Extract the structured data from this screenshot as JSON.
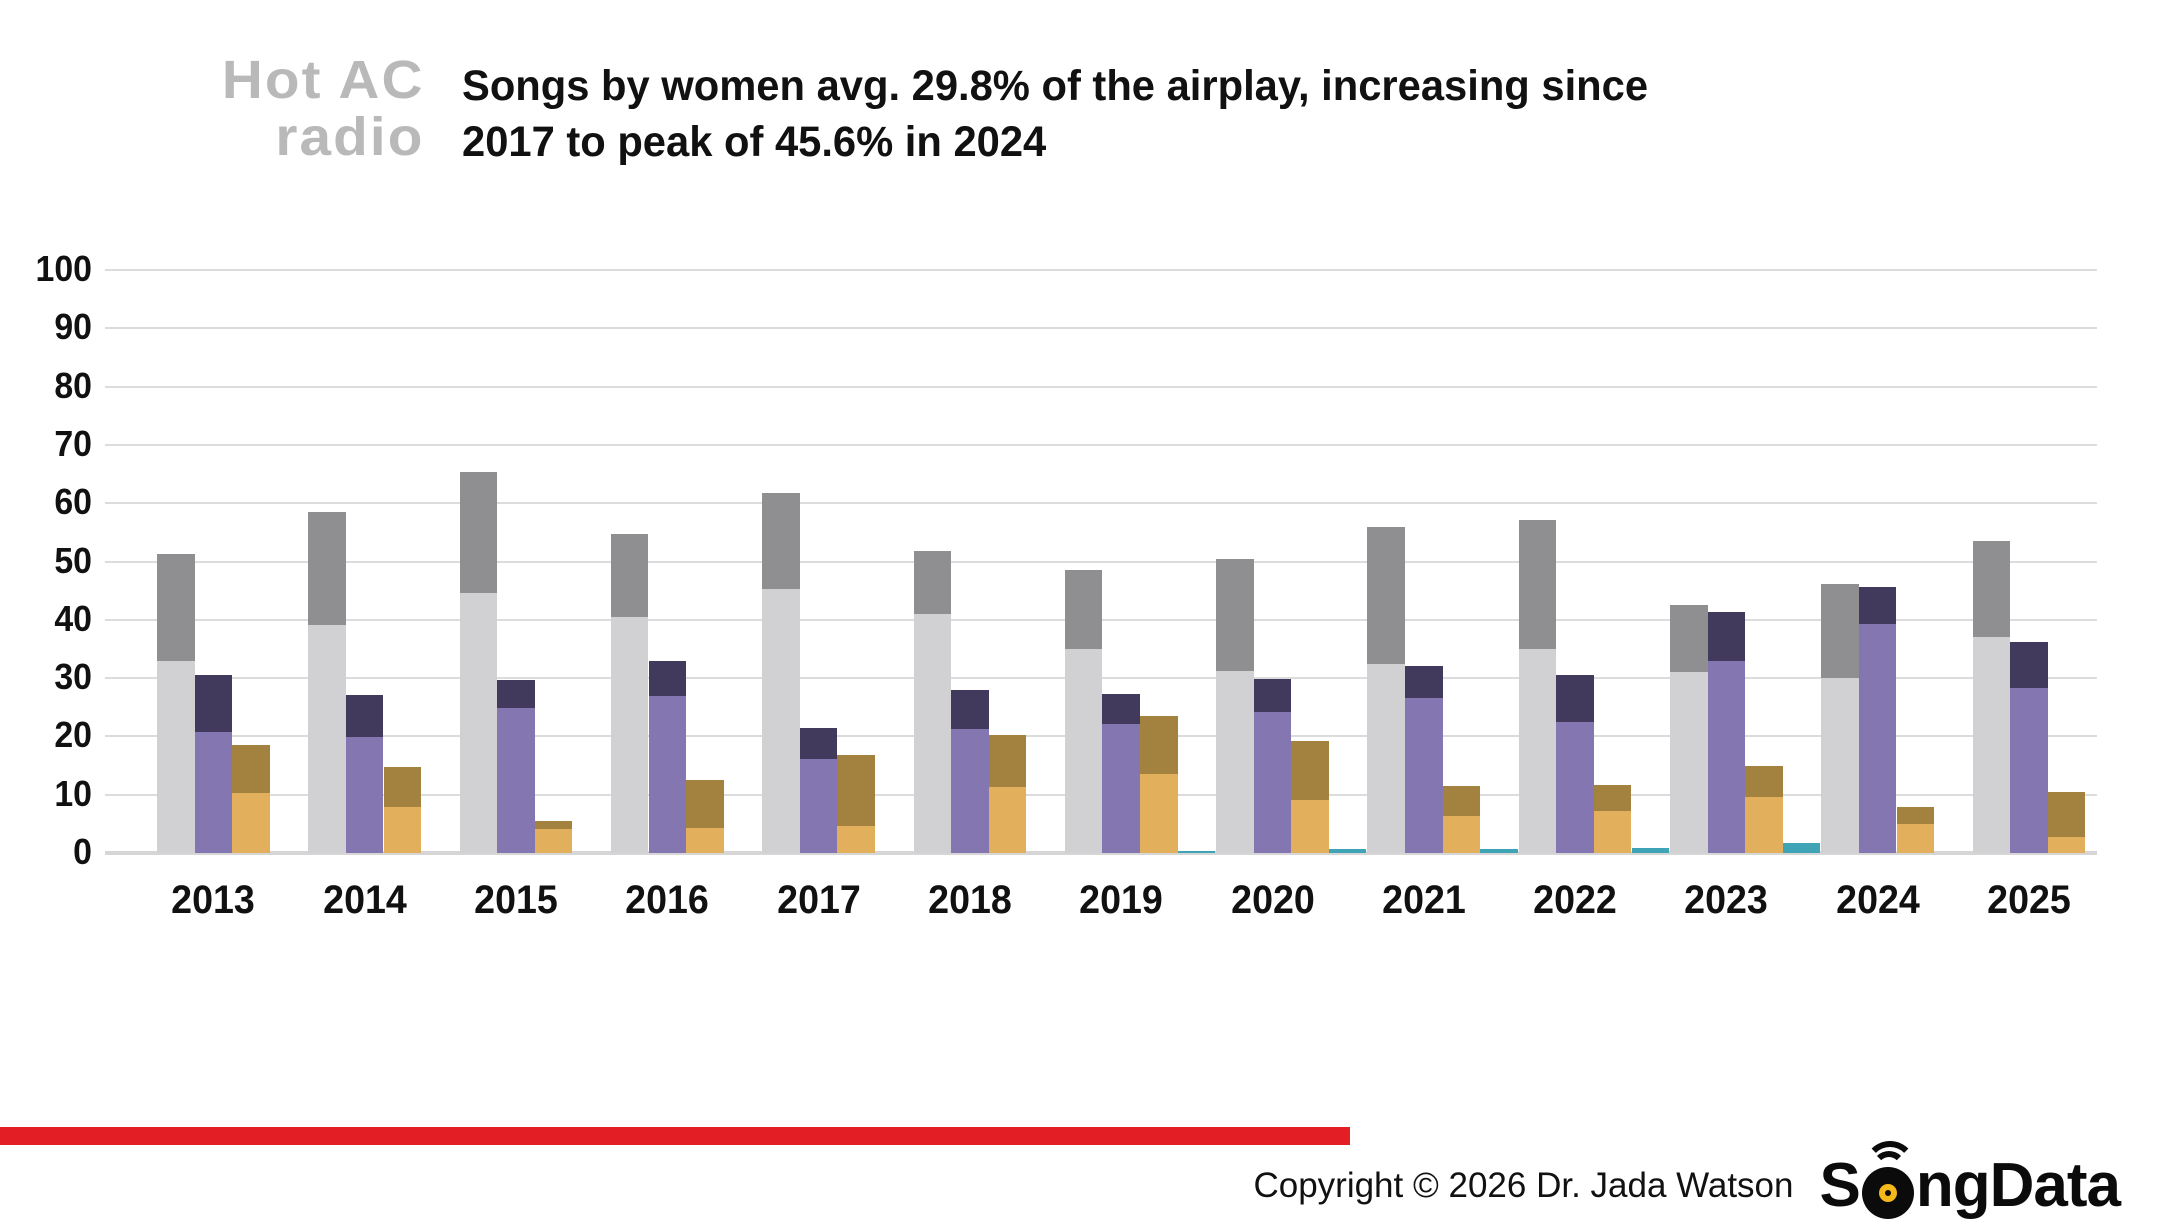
{
  "header": {
    "station_logo_line1": "Hot AC",
    "station_logo_line2": "radio",
    "title_line1": "Songs by women avg. 29.8% of the airplay, increasing since",
    "title_line2": "2017 to peak of 45.6% in 2024"
  },
  "footer": {
    "copyright": "Copyright © 2026 Dr. Jada Watson",
    "brand_prefix": "S",
    "brand_suffix": "ngData"
  },
  "colors": {
    "light_gray": "#d1d0d2",
    "dark_gray": "#8f8e90",
    "light_purple": "#8477b1",
    "dark_purple": "#413a5c",
    "light_gold": "#e2b05c",
    "dark_gold": "#a3823f",
    "teal": "#3fa4b5",
    "red_rule": "#e41e25",
    "gridline": "#dcdcdc",
    "logo_gray": "#b9b9b9"
  },
  "chart_data": {
    "type": "bar",
    "subtype": "grouped-stacked-percent",
    "title": "Songs by women avg. 29.8% of the airplay, increasing since 2017 to peak of 45.6% in 2024",
    "xlabel": "",
    "ylabel": "",
    "ylim": [
      0,
      100
    ],
    "yticks": [
      0,
      10,
      20,
      30,
      40,
      50,
      60,
      70,
      80,
      90,
      100
    ],
    "grid": true,
    "legend": "none",
    "categories": [
      "2013",
      "2014",
      "2015",
      "2016",
      "2017",
      "2018",
      "2019",
      "2020",
      "2021",
      "2022",
      "2023",
      "2024",
      "2025"
    ],
    "series": [
      {
        "name": "gray-bar-light-segment",
        "color_key": "light_gray",
        "values": [
          33.0,
          39.1,
          44.6,
          40.5,
          45.3,
          41.0,
          35.0,
          31.3,
          32.4,
          35.0,
          31.1,
          30.0,
          37.0
        ]
      },
      {
        "name": "gray-bar-total",
        "color_key": "dark_gray",
        "values": [
          51.3,
          58.5,
          65.3,
          54.7,
          61.7,
          51.8,
          48.5,
          50.4,
          55.9,
          57.1,
          42.5,
          46.2,
          53.5
        ]
      },
      {
        "name": "purple-bar-light-segment",
        "color_key": "light_purple",
        "values": [
          20.8,
          19.9,
          24.9,
          26.9,
          16.2,
          21.3,
          22.1,
          24.2,
          26.6,
          22.5,
          33.0,
          39.3,
          28.3
        ]
      },
      {
        "name": "purple-bar-total",
        "color_key": "dark_purple",
        "values": [
          30.5,
          27.1,
          29.7,
          33.0,
          21.5,
          28.0,
          27.3,
          29.8,
          32.1,
          30.5,
          41.3,
          45.6,
          36.2
        ]
      },
      {
        "name": "gold-bar-light-segment",
        "color_key": "light_gold",
        "values": [
          10.3,
          7.9,
          4.1,
          4.3,
          4.6,
          11.3,
          13.5,
          9.1,
          6.3,
          7.2,
          9.6,
          5.0,
          2.7
        ]
      },
      {
        "name": "gold-bar-total",
        "color_key": "dark_gold",
        "values": [
          18.5,
          14.8,
          5.5,
          12.5,
          16.8,
          20.2,
          23.5,
          19.2,
          11.5,
          11.7,
          14.9,
          7.9,
          10.5
        ]
      },
      {
        "name": "teal-bar-total",
        "color_key": "teal",
        "values": [
          0,
          0,
          0,
          0,
          0,
          0,
          0.4,
          0.7,
          0.7,
          0.8,
          1.8,
          0,
          0
        ]
      }
    ]
  }
}
